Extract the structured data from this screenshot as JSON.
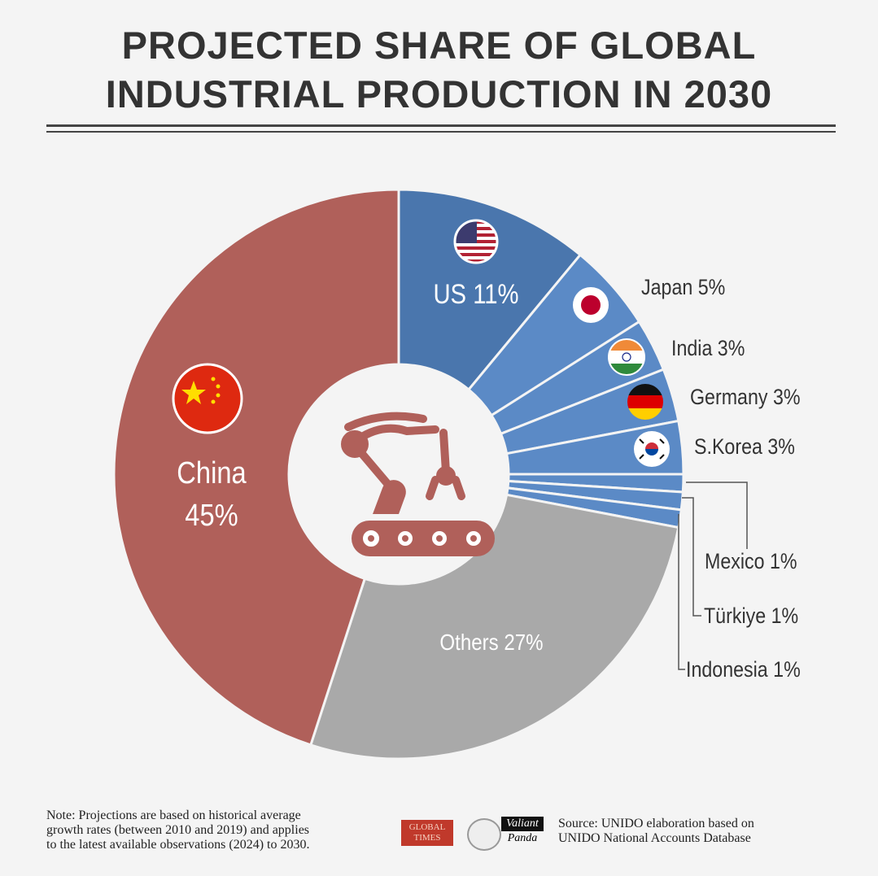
{
  "title": {
    "line1": "PROJECTED SHARE OF GLOBAL",
    "line2": "INDUSTRIAL PRODUCTION IN 2030"
  },
  "chart_data": {
    "type": "pie",
    "variant": "donut",
    "title": "PROJECTED SHARE OF GLOBAL INDUSTRIAL PRODUCTION IN 2030",
    "unit": "%",
    "slices": [
      {
        "name": "US",
        "value": 11,
        "label": "US 11%",
        "color": "#4a76ad",
        "flag": "us-flag-icon"
      },
      {
        "name": "Japan",
        "value": 5,
        "label": "Japan 5%",
        "color": "#5b8ac6",
        "flag": "japan-flag-icon"
      },
      {
        "name": "India",
        "value": 3,
        "label": "India 3%",
        "color": "#5b8ac6",
        "flag": "india-flag-icon"
      },
      {
        "name": "Germany",
        "value": 3,
        "label": "Germany 3%",
        "color": "#5b8ac6",
        "flag": "germany-flag-icon"
      },
      {
        "name": "S.Korea",
        "value": 3,
        "label": "S.Korea 3%",
        "color": "#5b8ac6",
        "flag": "south-korea-flag-icon"
      },
      {
        "name": "Mexico",
        "value": 1,
        "label": "Mexico 1%",
        "color": "#5b8ac6"
      },
      {
        "name": "Türkiye",
        "value": 1,
        "label": "Türkiye 1%",
        "color": "#5b8ac6"
      },
      {
        "name": "Indonesia",
        "value": 1,
        "label": "Indonesia 1%",
        "color": "#5b8ac6"
      },
      {
        "name": "Others",
        "value": 27,
        "label": "Others 27%",
        "color": "#a9a9a9"
      },
      {
        "name": "China",
        "value": 45,
        "label_name": "China",
        "label_value": "45%",
        "color": "#b0605a",
        "flag": "china-flag-icon"
      }
    ],
    "center_icon": "robot-arm-conveyor-icon"
  },
  "footer": {
    "note": [
      "Note: Projections are based on historical average",
      "growth rates (between 2010 and 2019) and applies",
      "to the latest available observations (2024) to 2030."
    ],
    "source": [
      "Source: UNIDO elaboration based on",
      "UNIDO National Accounts Database"
    ],
    "logos": {
      "global_times": "GLOBAL TIMES",
      "valiant": "Valiant",
      "panda": "Panda"
    }
  }
}
